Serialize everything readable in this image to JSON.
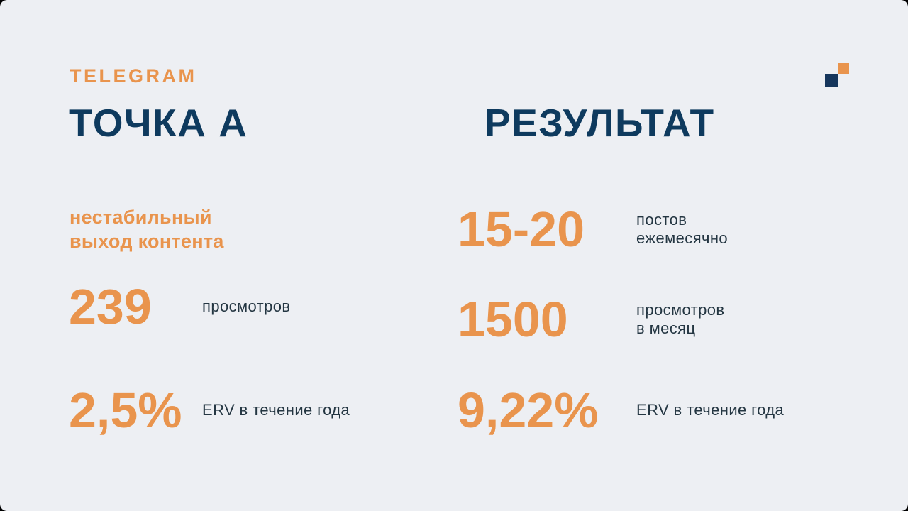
{
  "header": {
    "eyebrow": "TELEGRAM"
  },
  "logo": {
    "description": "two-offset-squares",
    "orange_square_color": "#e9944d",
    "navy_square_color": "#16365c"
  },
  "colors": {
    "background": "#edeff3",
    "accent_orange": "#e9944d",
    "title_navy": "#0e3a5e",
    "label_dark": "#243642"
  },
  "columns": [
    {
      "title": "ТОЧКА А",
      "note_lines": [
        "нестабильный",
        "выход контента"
      ],
      "stats": [
        {
          "value": "239",
          "label_lines": [
            "просмотров"
          ]
        },
        {
          "value": "2,5%",
          "label_lines": [
            "ERV в течение года"
          ]
        }
      ]
    },
    {
      "title": "РЕЗУЛЬТАТ",
      "stats": [
        {
          "value": "15-20",
          "label_lines": [
            "постов",
            "ежемесячно"
          ]
        },
        {
          "value": "1500",
          "label_lines": [
            "просмотров",
            "в месяц"
          ]
        },
        {
          "value": "9,22%",
          "label_lines": [
            "ERV в течение года"
          ]
        }
      ]
    }
  ]
}
